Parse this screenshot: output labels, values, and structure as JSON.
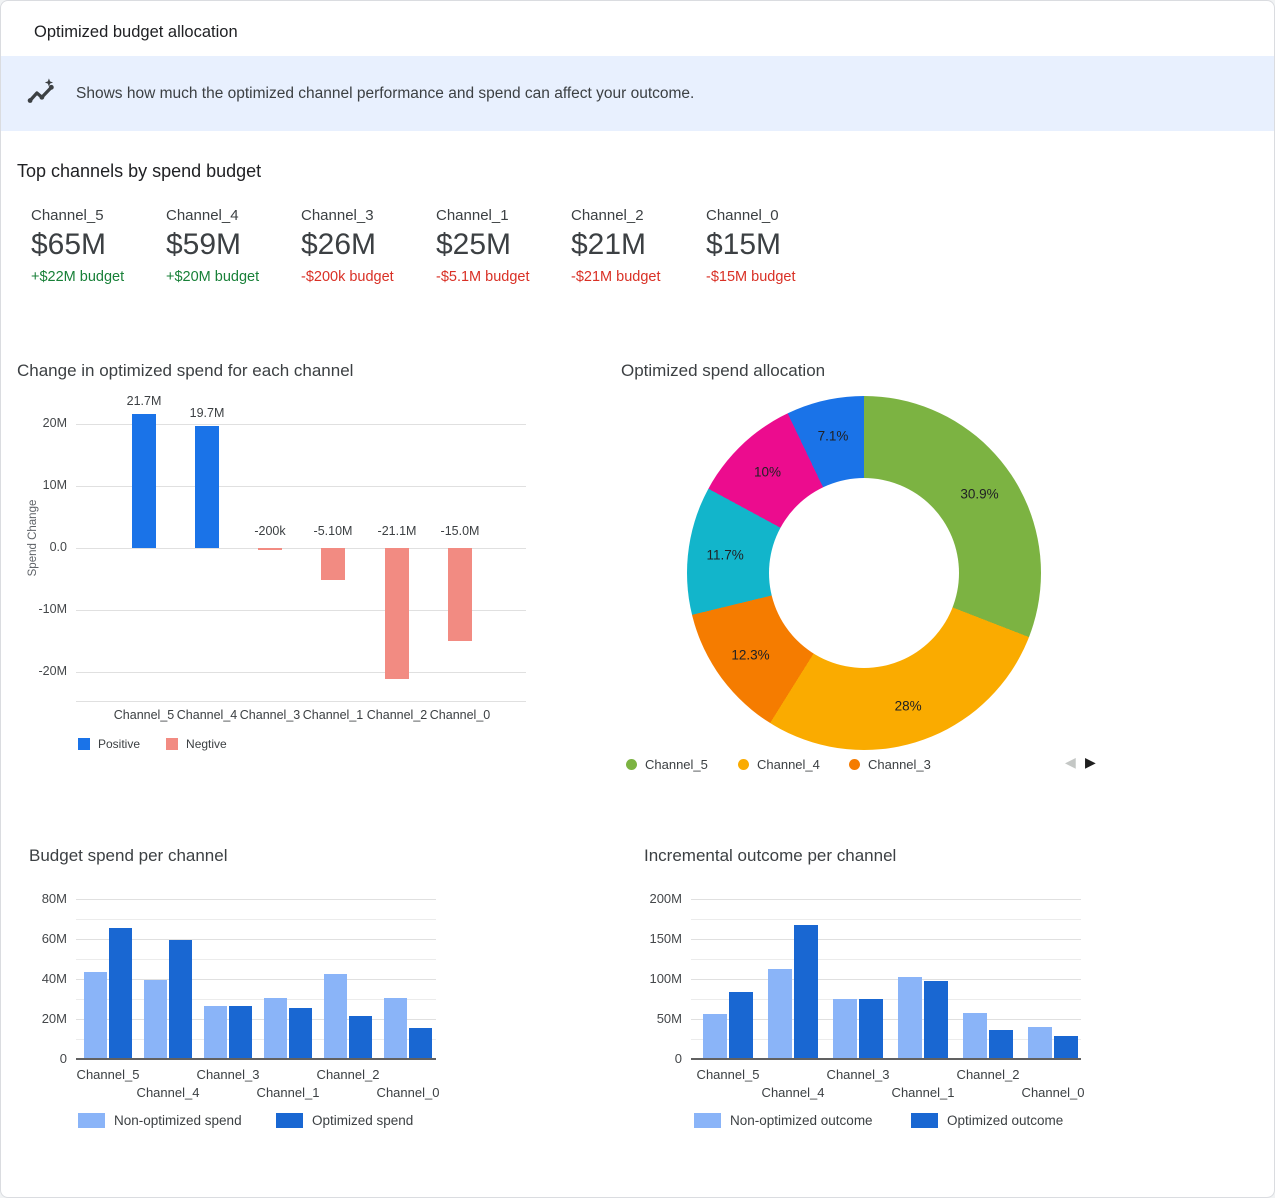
{
  "page": {
    "title": "Optimized budget allocation"
  },
  "banner": {
    "icon": "insights-icon",
    "text": "Shows how much the optimized channel performance and spend can affect your outcome."
  },
  "top_channels": {
    "title": "Top channels by spend budget",
    "cards": [
      {
        "channel": "Channel_5",
        "amount": "$65M",
        "delta": "+$22M budget",
        "trend": "positive"
      },
      {
        "channel": "Channel_4",
        "amount": "$59M",
        "delta": "+$20M budget",
        "trend": "positive"
      },
      {
        "channel": "Channel_3",
        "amount": "$26M",
        "delta": "-$200k budget",
        "trend": "negative"
      },
      {
        "channel": "Channel_1",
        "amount": "$25M",
        "delta": "-$5.1M budget",
        "trend": "negative"
      },
      {
        "channel": "Channel_2",
        "amount": "$21M",
        "delta": "-$21M budget",
        "trend": "negative"
      },
      {
        "channel": "Channel_0",
        "amount": "$15M",
        "delta": "-$15M budget",
        "trend": "negative"
      }
    ]
  },
  "colors": {
    "banner_bg": "#e8f0fe",
    "positive_text": "#188038",
    "negative_text": "#d93025",
    "bar_positive": "#1a73e8",
    "bar_negative": "#f28b82",
    "non_optimized": "#8ab4f8",
    "optimized": "#1967d2"
  },
  "chart_data": [
    {
      "id": "spend_change",
      "type": "bar",
      "title": "Change in optimized spend for each channel",
      "ylabel": "Spend Change",
      "categories": [
        "Channel_5",
        "Channel_4",
        "Channel_3",
        "Channel_1",
        "Channel_2",
        "Channel_0"
      ],
      "values_M": [
        21.7,
        19.7,
        -0.2,
        -5.1,
        -21.1,
        -15.0
      ],
      "value_labels": [
        "21.7M",
        "19.7M",
        "-200k",
        "-5.10M",
        "-21.1M",
        "-15.0M"
      ],
      "ytick_values": [
        20,
        10,
        0,
        -10,
        -20
      ],
      "ytick_labels": [
        "20M",
        "10M",
        "0.0",
        "-10M",
        "-20M"
      ],
      "ylim": [
        -24.5,
        24.5
      ],
      "grid": true,
      "legend_position": "bottom",
      "legend": [
        {
          "label": "Positive",
          "color": "#1a73e8"
        },
        {
          "label": "Negtive",
          "color": "#f28b82"
        }
      ]
    },
    {
      "id": "spend_allocation",
      "type": "pie",
      "title": "Optimized spend allocation",
      "donut": true,
      "slices": [
        {
          "channel": "Channel_5",
          "pct": 30.9,
          "label": "30.9%",
          "color": "#7cb342"
        },
        {
          "channel": "Channel_4",
          "pct": 28.0,
          "label": "28%",
          "color": "#faab00"
        },
        {
          "channel": "Channel_3",
          "pct": 12.3,
          "label": "12.3%",
          "color": "#f57c00"
        },
        {
          "pct": 11.7,
          "label": "11.7%",
          "color": "#12b5cb"
        },
        {
          "pct": 10.0,
          "label": "10%",
          "color": "#ec0c8e"
        },
        {
          "pct": 7.1,
          "label": "7.1%",
          "color": "#1a73e8"
        }
      ],
      "legend": [
        {
          "label": "Channel_5",
          "color": "#7cb342"
        },
        {
          "label": "Channel_4",
          "color": "#faab00"
        },
        {
          "label": "Channel_3",
          "color": "#f57c00"
        }
      ],
      "pagination": {
        "prev": "◀",
        "next": "▶"
      }
    },
    {
      "id": "budget_spend",
      "type": "bar",
      "title": "Budget spend per channel",
      "categories": [
        "Channel_5",
        "Channel_4",
        "Channel_3",
        "Channel_1",
        "Channel_2",
        "Channel_0"
      ],
      "series": [
        {
          "name": "Non-optimized spend",
          "color": "#8ab4f8",
          "values_M": [
            43,
            39,
            26,
            30,
            42,
            30
          ]
        },
        {
          "name": "Optimized spend",
          "color": "#1967d2",
          "values_M": [
            65,
            59,
            26,
            25,
            21,
            15
          ]
        }
      ],
      "ytick_values": [
        0,
        20,
        40,
        60,
        80
      ],
      "ytick_labels": [
        "0",
        "20M",
        "40M",
        "60M",
        "80M"
      ],
      "minor_step": 10,
      "ylim": [
        0,
        80
      ],
      "grid": true,
      "legend_position": "bottom"
    },
    {
      "id": "incremental_outcome",
      "type": "bar",
      "title": "Incremental outcome per channel",
      "categories": [
        "Channel_5",
        "Channel_4",
        "Channel_3",
        "Channel_1",
        "Channel_2",
        "Channel_0"
      ],
      "series": [
        {
          "name": "Non-optimized outcome",
          "color": "#8ab4f8",
          "values_M": [
            55,
            111,
            74,
            101,
            56,
            39
          ]
        },
        {
          "name": "Optimized outcome",
          "color": "#1967d2",
          "values_M": [
            82,
            166,
            74,
            96,
            35,
            27
          ]
        }
      ],
      "ytick_values": [
        0,
        50,
        100,
        150,
        200
      ],
      "ytick_labels": [
        "0",
        "50M",
        "100M",
        "150M",
        "200M"
      ],
      "minor_step": 25,
      "ylim": [
        0,
        200
      ],
      "grid": true,
      "legend_position": "bottom"
    }
  ]
}
